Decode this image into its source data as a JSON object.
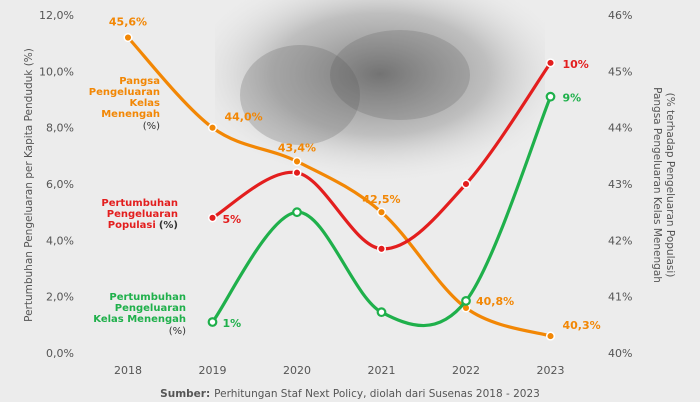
{
  "chart_data": {
    "type": "line",
    "categories": [
      "2018",
      "2019",
      "2020",
      "2021",
      "2022",
      "2023"
    ],
    "y_left": {
      "label": "Pertumbuhan Pengeluaran per Kapita Penduduk (%)",
      "ticks": [
        "0,0%",
        "2,0%",
        "4,0%",
        "6,0%",
        "8,0%",
        "10,0%",
        "12,0%"
      ],
      "lim": [
        0,
        12
      ]
    },
    "y_right": {
      "label_line1": "Pangsa Pengeluaran Kelas Menengah",
      "label_line2": "(% terhadap Pengeluaran Populasi)",
      "ticks": [
        "40%",
        "41%",
        "42%",
        "43%",
        "44%",
        "45%",
        "46%"
      ],
      "lim": [
        40,
        46
      ]
    },
    "series": [
      {
        "name": "Pangsa Pengeluaran Kelas Menengah",
        "legend_lines": [
          "Pangsa",
          "Pengeluaran",
          "Kelas",
          "Menengah"
        ],
        "unit": "(%)",
        "axis": "right",
        "color": "#f28705",
        "x": [
          "2018",
          "2019",
          "2020",
          "2021",
          "2022",
          "2023"
        ],
        "values": [
          45.6,
          44.0,
          43.4,
          42.5,
          40.8,
          40.3
        ],
        "labels": [
          "45,6%",
          "44,0%",
          "43,4%",
          "42,5%",
          "40,8%",
          "40,3%"
        ],
        "marker": "filled"
      },
      {
        "name": "Pertumbuhan Pengeluaran Populasi",
        "legend_lines": [
          "Pertumbuhan",
          "Pengeluaran",
          "Populasi"
        ],
        "unit": "(%)",
        "axis": "left",
        "color": "#e31e1e",
        "x": [
          "2019",
          "2020",
          "2021",
          "2022",
          "2023"
        ],
        "values": [
          4.8,
          6.4,
          3.7,
          6.0,
          10.3
        ],
        "labels": [
          "5%",
          "",
          "",
          "",
          "10%"
        ],
        "marker": "filled"
      },
      {
        "name": "Pertumbuhan Pengeluaran Kelas Menengah",
        "legend_lines": [
          "Pertumbuhan",
          "Pengeluaran",
          "Kelas Menengah"
        ],
        "unit": "(%)",
        "axis": "left",
        "color": "#1fb04b",
        "x": [
          "2019",
          "2020",
          "2021",
          "2022",
          "2023"
        ],
        "values": [
          1.1,
          5.0,
          1.45,
          1.85,
          9.1
        ],
        "labels": [
          "1%",
          "",
          "",
          "",
          "9%"
        ],
        "marker": "hollow"
      }
    ]
  },
  "source": {
    "bold": "Sumber:",
    "text": "Perhitungan Staf Next Policy, diolah dari Susenas 2018 - 2023"
  }
}
